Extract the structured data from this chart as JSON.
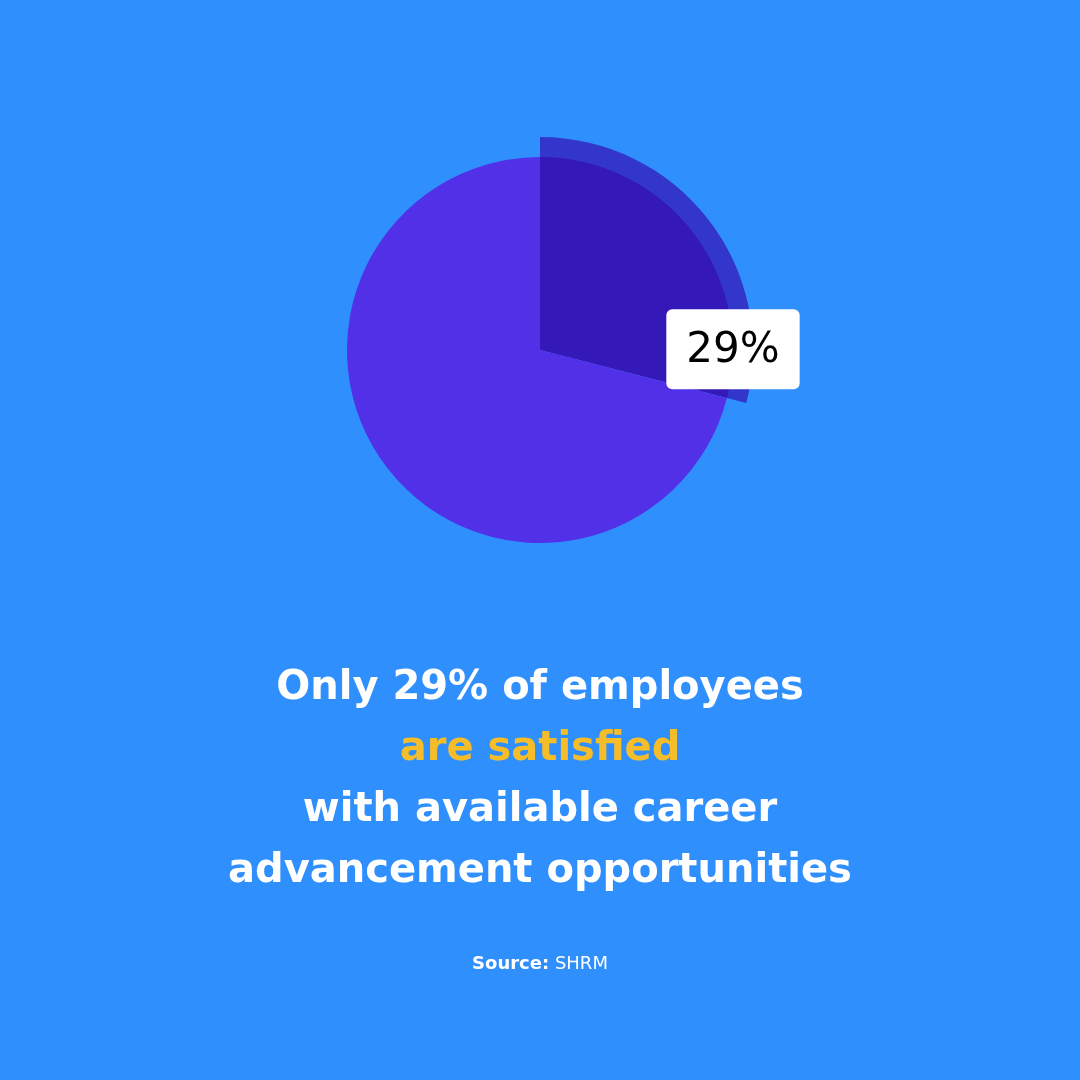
{
  "chart_data": {
    "type": "pie",
    "title": "Only 29% of employees\nare satisfied\nwith available career\nadvancement opportunities",
    "categories": [
      null,
      null
    ],
    "values": [
      29,
      71
    ],
    "colors": [
      "#3418b8",
      "#5130e8"
    ],
    "value_labels": [
      "29%",
      null
    ],
    "legend": false,
    "annotations": [
      "Source: SHRM"
    ]
  }
}
